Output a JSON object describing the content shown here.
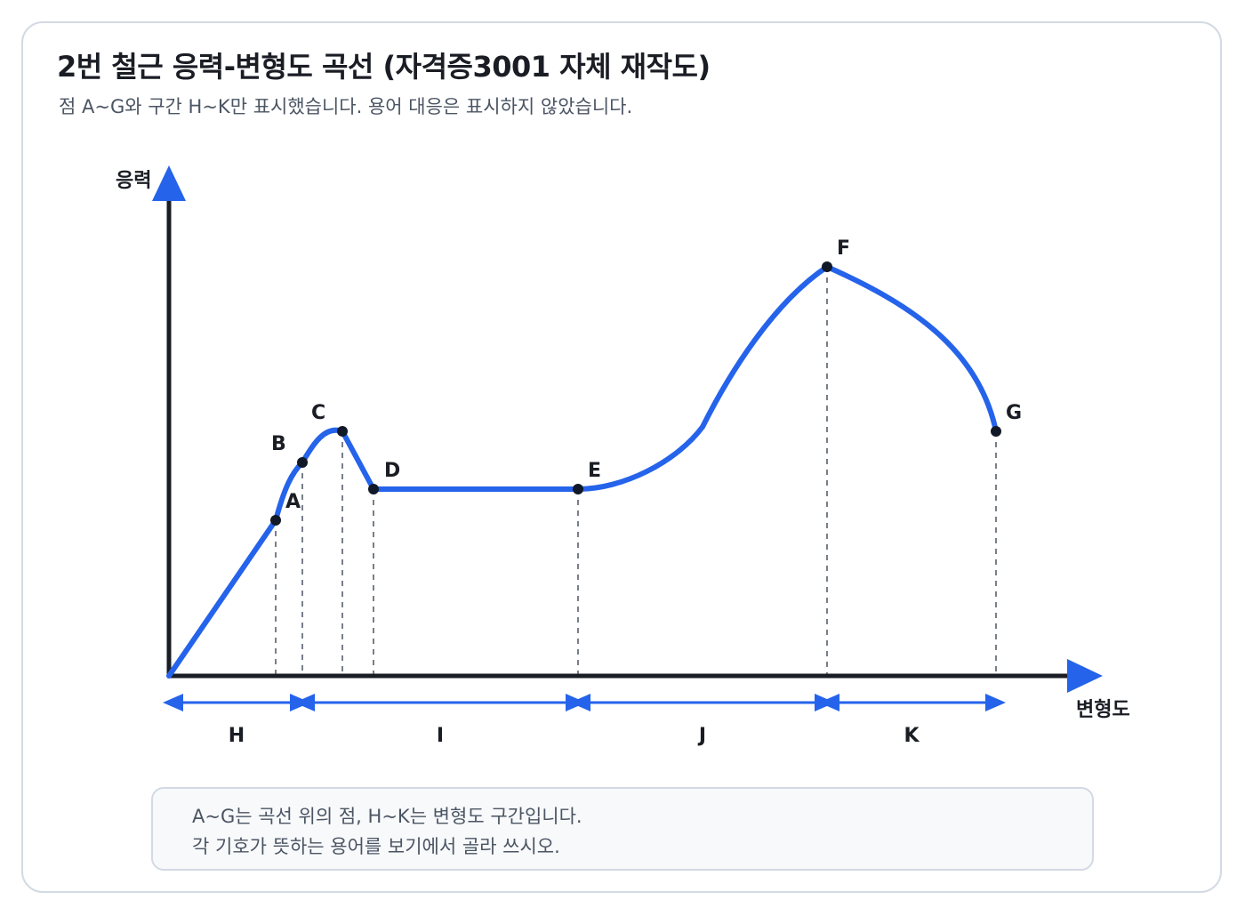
{
  "title": "2번 철근 응력-변형도 곡선 (자격증3001 자체 재작도)",
  "subtitle": "점 A~G와 구간 H~K만 표시했습니다. 용어 대응은 표시하지 않았습니다.",
  "axes": {
    "y_label": "응력",
    "x_label": "변형도"
  },
  "points": [
    "A",
    "B",
    "C",
    "D",
    "E",
    "F",
    "G"
  ],
  "intervals": [
    "H",
    "I",
    "J",
    "K"
  ],
  "note": {
    "line1": "A~G는 곡선 위의 점, H~K는 변형도 구간입니다.",
    "line2": "각 기호가 뜻하는 용어를 보기에서 골라 쓰시오."
  },
  "colors": {
    "curve": "#2563eb",
    "axis": "#1a1d24",
    "guide": "#4b5563",
    "point": "#111827"
  }
}
